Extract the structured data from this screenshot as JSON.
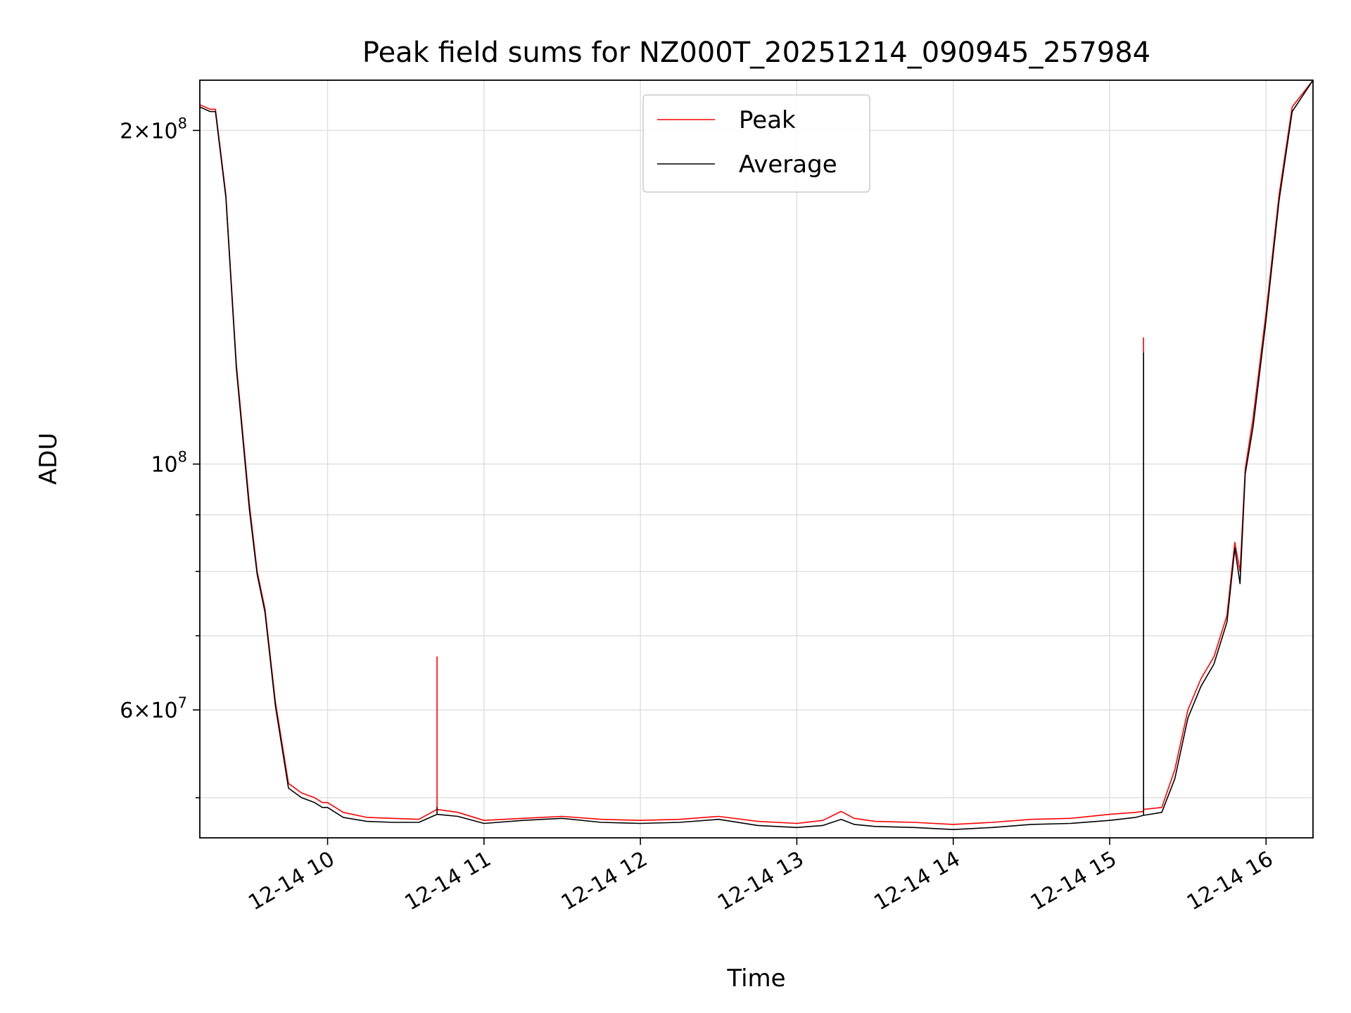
{
  "chart_data": {
    "type": "line",
    "title": "Peak field sums for NZ000T_20251214_090945_257984",
    "xlabel": "Time",
    "ylabel": "ADU",
    "yscale": "log",
    "grid": true,
    "legend_position": "top-center",
    "xlim": [
      "2025-12-14 09:11",
      "2025-12-14 16:18"
    ],
    "ylim": [
      46000000,
      222000000
    ],
    "x_ticks": [
      "12-14 10",
      "12-14 11",
      "12-14 12",
      "12-14 13",
      "12-14 14",
      "12-14 15",
      "12-14 16"
    ],
    "y_tick_labels": [
      {
        "base": "2",
        "mantissa": "10",
        "exp": "8",
        "value": 200000000
      },
      {
        "base": "",
        "mantissa": "10",
        "exp": "8",
        "value": 100000000
      },
      {
        "base": "6",
        "mantissa": "10",
        "exp": "7",
        "value": 60000000
      }
    ],
    "y_minor_grid": [
      50000000,
      70000000,
      80000000,
      90000000
    ],
    "series": [
      {
        "name": "Peak",
        "color": "#ff0000",
        "x": [
          "2025-12-14 09:11",
          "2025-12-14 09:15",
          "2025-12-14 09:17",
          "2025-12-14 09:21",
          "2025-12-14 09:25",
          "2025-12-14 09:30",
          "2025-12-14 09:33",
          "2025-12-14 09:36",
          "2025-12-14 09:40",
          "2025-12-14 09:45",
          "2025-12-14 09:50",
          "2025-12-14 09:55",
          "2025-12-14 09:58",
          "2025-12-14 10:00",
          "2025-12-14 10:06",
          "2025-12-14 10:15",
          "2025-12-14 10:25",
          "2025-12-14 10:35",
          "2025-12-14 10:42",
          "2025-12-14 10:42",
          "2025-12-14 10:42",
          "2025-12-14 10:50",
          "2025-12-14 11:00",
          "2025-12-14 11:15",
          "2025-12-14 11:30",
          "2025-12-14 11:45",
          "2025-12-14 12:00",
          "2025-12-14 12:15",
          "2025-12-14 12:30",
          "2025-12-14 12:45",
          "2025-12-14 13:00",
          "2025-12-14 13:10",
          "2025-12-14 13:17",
          "2025-12-14 13:22",
          "2025-12-14 13:30",
          "2025-12-14 13:45",
          "2025-12-14 14:00",
          "2025-12-14 14:15",
          "2025-12-14 14:30",
          "2025-12-14 14:45",
          "2025-12-14 15:00",
          "2025-12-14 15:10",
          "2025-12-14 15:13",
          "2025-12-14 15:13",
          "2025-12-14 15:13",
          "2025-12-14 15:20",
          "2025-12-14 15:25",
          "2025-12-14 15:30",
          "2025-12-14 15:35",
          "2025-12-14 15:40",
          "2025-12-14 15:45",
          "2025-12-14 15:48",
          "2025-12-14 15:50",
          "2025-12-14 15:52",
          "2025-12-14 15:55",
          "2025-12-14 16:00",
          "2025-12-14 16:05",
          "2025-12-14 16:10",
          "2025-12-14 16:18"
        ],
        "y": [
          211000000,
          209000000,
          209000000,
          175000000,
          123000000,
          92000000,
          80000000,
          74000000,
          61000000,
          51500000,
          50500000,
          50000000,
          49500000,
          49500000,
          48500000,
          48000000,
          47900000,
          47800000,
          48800000,
          67000000,
          48800000,
          48500000,
          47700000,
          47900000,
          48100000,
          47800000,
          47700000,
          47800000,
          48100000,
          47600000,
          47400000,
          47700000,
          48600000,
          47900000,
          47600000,
          47500000,
          47300000,
          47500000,
          47800000,
          47900000,
          48300000,
          48500000,
          48600000,
          130000000,
          48800000,
          49000000,
          53000000,
          60000000,
          64000000,
          67000000,
          73000000,
          85000000,
          80000000,
          99000000,
          110000000,
          137000000,
          175000000,
          210000000,
          222000000
        ]
      },
      {
        "name": "Average",
        "color": "#000000",
        "x": [
          "2025-12-14 09:11",
          "2025-12-14 09:15",
          "2025-12-14 09:17",
          "2025-12-14 09:21",
          "2025-12-14 09:25",
          "2025-12-14 09:30",
          "2025-12-14 09:33",
          "2025-12-14 09:36",
          "2025-12-14 09:40",
          "2025-12-14 09:45",
          "2025-12-14 09:50",
          "2025-12-14 09:55",
          "2025-12-14 09:58",
          "2025-12-14 10:00",
          "2025-12-14 10:06",
          "2025-12-14 10:15",
          "2025-12-14 10:25",
          "2025-12-14 10:35",
          "2025-12-14 10:42",
          "2025-12-14 10:42",
          "2025-12-14 10:42",
          "2025-12-14 10:50",
          "2025-12-14 11:00",
          "2025-12-14 11:15",
          "2025-12-14 11:30",
          "2025-12-14 11:45",
          "2025-12-14 12:00",
          "2025-12-14 12:15",
          "2025-12-14 12:30",
          "2025-12-14 12:45",
          "2025-12-14 13:00",
          "2025-12-14 13:10",
          "2025-12-14 13:17",
          "2025-12-14 13:22",
          "2025-12-14 13:30",
          "2025-12-14 13:45",
          "2025-12-14 14:00",
          "2025-12-14 14:15",
          "2025-12-14 14:30",
          "2025-12-14 14:45",
          "2025-12-14 15:00",
          "2025-12-14 15:10",
          "2025-12-14 15:13",
          "2025-12-14 15:13",
          "2025-12-14 15:13",
          "2025-12-14 15:20",
          "2025-12-14 15:25",
          "2025-12-14 15:30",
          "2025-12-14 15:35",
          "2025-12-14 15:40",
          "2025-12-14 15:45",
          "2025-12-14 15:48",
          "2025-12-14 15:50",
          "2025-12-14 15:52",
          "2025-12-14 15:55",
          "2025-12-14 16:00",
          "2025-12-14 16:05",
          "2025-12-14 16:10",
          "2025-12-14 16:18"
        ],
        "y": [
          210000000,
          208000000,
          208000000,
          174000000,
          122000000,
          91000000,
          79500000,
          73500000,
          60500000,
          51000000,
          50000000,
          49500000,
          49000000,
          49000000,
          48000000,
          47600000,
          47500000,
          47500000,
          48300000,
          49000000,
          48300000,
          48100000,
          47400000,
          47700000,
          47900000,
          47500000,
          47400000,
          47500000,
          47800000,
          47200000,
          47000000,
          47200000,
          47800000,
          47300000,
          47100000,
          47000000,
          46800000,
          47000000,
          47300000,
          47400000,
          47700000,
          48000000,
          48200000,
          126000000,
          48200000,
          48500000,
          52000000,
          59000000,
          63000000,
          66000000,
          72000000,
          84000000,
          78000000,
          98000000,
          108000000,
          135000000,
          173000000,
          208000000,
          222000000
        ]
      }
    ]
  }
}
